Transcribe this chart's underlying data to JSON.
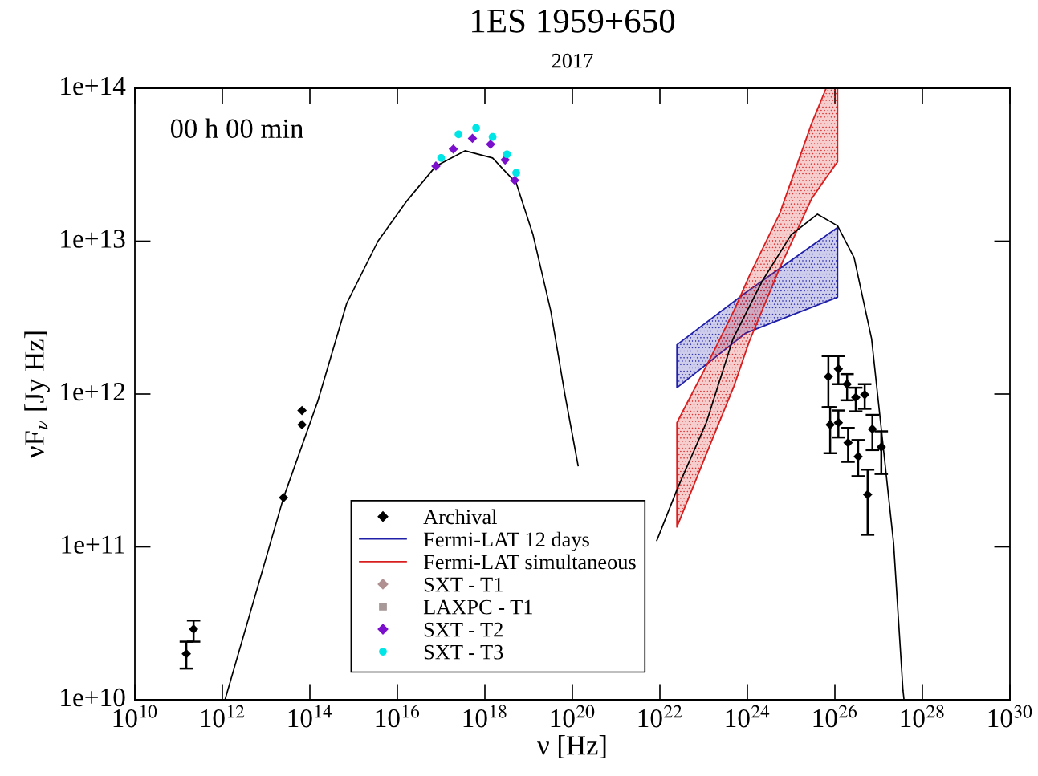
{
  "chart_data": {
    "type": "scatter",
    "title": "1ES 1959+650",
    "subtitle": "2017",
    "xlabel": "ν [Hz]",
    "ylabel": "νF$_{ν}$ [Jy Hz]",
    "log": "xy",
    "legend": "bottom",
    "annotations": [
      "00 h 00 min"
    ],
    "xlim": [
      10000000000.0,
      1e+30
    ],
    "ylim": [
      10000000000.0,
      100000000000000.0
    ],
    "xticks": [
      {
        "value": 10000000000.0,
        "label": "10$^{10}$"
      },
      {
        "value": 1000000000000.0,
        "label": "10$^{12}$"
      },
      {
        "value": 100000000000000.0,
        "label": "10$^{14}$"
      },
      {
        "value": 1e+16,
        "label": "10$^{16}$"
      },
      {
        "value": 1e+18,
        "label": "10$^{18}$"
      },
      {
        "value": 1e+20,
        "label": "10$^{20}$"
      },
      {
        "value": 1e+22,
        "label": "10$^{22}$"
      },
      {
        "value": 1e+24,
        "label": "10$^{24}$"
      },
      {
        "value": 1e+26,
        "label": "10$^{26}$"
      },
      {
        "value": 1e+28,
        "label": "10$^{28}$"
      },
      {
        "value": 1e+30,
        "label": "10$^{30}$"
      }
    ],
    "yticks": [
      {
        "value": 10000000000.0,
        "label": "1e+10"
      },
      {
        "value": 100000000000.0,
        "label": "1e+11"
      },
      {
        "value": 1000000000000.0,
        "label": "1e+12"
      },
      {
        "value": 10000000000000.0,
        "label": "1e+13"
      },
      {
        "value": 100000000000000.0,
        "label": "1e+14"
      }
    ],
    "series": [
      {
        "name": "Archival",
        "marker": "diamond",
        "color": "#000000",
        "x": [
          150000000000.0,
          220000000000.0,
          25000000000000.0,
          66000000000000.0,
          66000000000000.0,
          7.1e+25,
          7.8e+25,
          1.2e+26,
          1.2e+26,
          1.9e+26,
          2e+26,
          3e+26,
          3.4e+26,
          4.8e+26,
          5.6e+26,
          7.2e+26,
          1.15e+27
        ],
        "values": [
          20000000000.0,
          29000000000.0,
          210000000000.0,
          780000000000.0,
          630000000000.0,
          1300000000000.0,
          630000000000.0,
          1460000000000.0,
          650000000000.0,
          1160000000000.0,
          480000000000.0,
          950000000000.0,
          390000000000.0,
          990000000000.0,
          220000000000.0,
          590000000000.0,
          450000000000.0
        ],
        "errors": [
          [
            16000000000.0,
            24000000000.0
          ],
          [
            24000000000.0,
            33000000000.0
          ],
          null,
          null,
          null,
          [
            820000000000.0,
            1770000000000.0
          ],
          [
            410000000000.0,
            820000000000.0
          ],
          [
            1160000000000.0,
            1770000000000.0
          ],
          [
            520000000000.0,
            780000000000.0
          ],
          [
            910000000000.0,
            1350000000000.0
          ],
          [
            360000000000.0,
            600000000000.0
          ],
          [
            770000000000.0,
            1100000000000.0
          ],
          [
            290000000000.0,
            500000000000.0
          ],
          [
            800000000000.0,
            1160000000000.0
          ],
          [
            120000000000.0,
            320000000000.0
          ],
          [
            430000000000.0,
            730000000000.0
          ],
          [
            300000000000.0,
            570000000000.0
          ]
        ]
      },
      {
        "name": "Fermi-LAT 12 days",
        "type": "area",
        "color": "#1f1fa8",
        "x": [
          2.45e+22,
          9.1e+23,
          1.15e+26
        ],
        "values": [
          null,
          null,
          null
        ],
        "lower": [
          1100000000000.0,
          2500000000000.0,
          4300000000000.0
        ],
        "upper": [
          2100000000000.0,
          4600000000000.0,
          12300000000000.0
        ]
      },
      {
        "name": "Fermi-LAT simultaneous",
        "type": "area",
        "color": "#d81e1e",
        "x": [
          2.45e+22,
          1.55e+23,
          4.9e+23,
          1.1e+24,
          5.4e+24,
          2.95e+25,
          6.3e+25,
          1.15e+26
        ],
        "values": [
          null,
          null,
          null,
          null,
          null,
          null,
          null,
          null
        ],
        "lower": [
          135000000000.0,
          500000000000.0,
          1120000000000.0,
          2200000000000.0,
          6600000000000.0,
          19000000000000.0,
          26000000000000.0,
          33000000000000.0
        ],
        "upper": [
          650000000000.0,
          1800000000000.0,
          3500000000000.0,
          5900000000000.0,
          15000000000000.0,
          59000000000000.0,
          100000000000000.0,
          100000000000000.0
        ]
      },
      {
        "name": "SXT - T1",
        "type": "scatter",
        "marker": "diamond",
        "color": "#b09090"
      },
      {
        "name": "LAXPC - T1",
        "type": "scatter",
        "marker": "square",
        "color": "#a89898"
      },
      {
        "name": "SXT - T2",
        "type": "scatter",
        "marker": "diamond",
        "color": "#7b10cc",
        "x": [
          7.6e+16,
          1.9e+17,
          5.2e+17,
          1.35e+18,
          2.9e+18,
          4.8e+18
        ],
        "values": [
          31000000000000.0,
          40000000000000.0,
          47000000000000.0,
          43000000000000.0,
          34000000000000.0,
          25000000000000.0
        ]
      },
      {
        "name": "SXT - T3",
        "type": "scatter",
        "marker": "circle",
        "color": "#00e5e5",
        "x": [
          1e+17,
          2.5e+17,
          6.3e+17,
          1.5e+18,
          3.2e+18,
          5.2e+18
        ],
        "values": [
          35000000000000.0,
          50000000000000.0,
          55000000000000.0,
          48000000000000.0,
          37000000000000.0,
          28000000000000.0
        ]
      },
      {
        "type": "line",
        "color": "#000000",
        "x": [
          1150000000000.0,
          25000000000000.0,
          150000000000000.0,
          690000000000000.0,
          3600000000000000.0,
          1.66e+16,
          7.6e+16,
          3.5e+17,
          1.5e+18,
          5.2e+18,
          1.26e+19,
          3.2e+19,
          6.8e+19,
          1.35e+20,
          1e+21,
          8.5e+21,
          2.5e+22,
          1.15e+23,
          4.7e+23,
          2.2e+24,
          1e+25,
          4e+25,
          1.15e+26,
          2.75e+26,
          6.9e+26,
          2.2e+27,
          3.6e+27,
          3.8e+27
        ],
        "values": [
          10000000000.0,
          210000000000.0,
          890000000000.0,
          3900000000000.0,
          10000000000000.0,
          18400000000000.0,
          31000000000000.0,
          39000000000000.0,
          35000000000000.0,
          24000000000000.0,
          11000000000000.0,
          3500000000000.0,
          980000000000.0,
          340000000000.0,
          null,
          110000000000.0,
          240000000000.0,
          650000000000.0,
          2300000000000.0,
          5500000000000.0,
          11000000000000.0,
          15000000000000.0,
          12600000000000.0,
          7800000000000.0,
          2300000000000.0,
          105000000000.0,
          11500000000.0,
          10000000000.0
        ]
      }
    ]
  }
}
